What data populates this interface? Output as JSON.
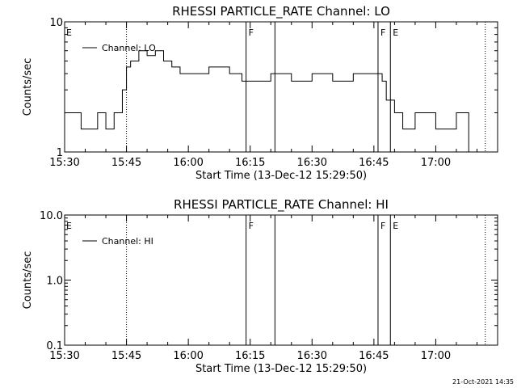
{
  "timestamp": "21-Oct-2021 14:35",
  "chart_data": [
    {
      "type": "line",
      "title": "RHESSI PARTICLE_RATE Channel: LO",
      "xlabel": "Start Time (13-Dec-12 15:29:50)",
      "ylabel": "Counts/sec",
      "yscale": "log",
      "xlim": [
        "15:30",
        "17:15"
      ],
      "ylim": [
        1,
        10
      ],
      "xticks": [
        "15:30",
        "15:45",
        "16:00",
        "16:15",
        "16:30",
        "16:45",
        "17:00"
      ],
      "yticks": [
        "1",
        "10"
      ],
      "legend": {
        "entries": [
          "Channel: LO"
        ],
        "placement": "top-left"
      },
      "grid": false,
      "series": [
        {
          "name": "Channel: LO",
          "x": [
            "15:30",
            "15:34",
            "15:38",
            "15:40",
            "15:42",
            "15:44",
            "15:45",
            "15:46",
            "15:48",
            "15:50",
            "15:52",
            "15:54",
            "15:56",
            "15:58",
            "16:00",
            "16:05",
            "16:10",
            "16:13",
            "16:15",
            "16:20",
            "16:25",
            "16:30",
            "16:35",
            "16:40",
            "16:45",
            "16:47",
            "16:48",
            "16:50",
            "16:52",
            "16:55",
            "17:00",
            "17:05",
            "17:08"
          ],
          "y": [
            2,
            1.5,
            2,
            1.5,
            2,
            3,
            4.5,
            5,
            6,
            5.5,
            6,
            5,
            4.5,
            4,
            4,
            4.5,
            4,
            3.5,
            3.5,
            4,
            3.5,
            4,
            3.5,
            4,
            4,
            3.5,
            2.5,
            2,
            1.5,
            2,
            1.5,
            2,
            1
          ]
        }
      ],
      "vlines": [
        {
          "x": "15:45",
          "style": "dotted",
          "label": ""
        },
        {
          "x": "16:14",
          "style": "solid",
          "label": "F"
        },
        {
          "x": "16:21",
          "style": "solid",
          "label": ""
        },
        {
          "x": "16:46",
          "style": "solid",
          "label": "F"
        },
        {
          "x": "16:49",
          "style": "solid",
          "label": "E"
        },
        {
          "x": "17:12",
          "style": "dotted",
          "label": ""
        }
      ],
      "annotations": [
        {
          "text": "E",
          "x": "15:30"
        }
      ]
    },
    {
      "type": "line",
      "title": "RHESSI PARTICLE_RATE Channel: HI",
      "xlabel": "Start Time (13-Dec-12 15:29:50)",
      "ylabel": "Counts/sec",
      "yscale": "log",
      "xlim": [
        "15:30",
        "17:15"
      ],
      "ylim": [
        0.1,
        10.0
      ],
      "xticks": [
        "15:30",
        "15:45",
        "16:00",
        "16:15",
        "16:30",
        "16:45",
        "17:00"
      ],
      "yticks": [
        "0.1",
        "1.0",
        "10.0"
      ],
      "legend": {
        "entries": [
          "Channel: HI"
        ],
        "placement": "top-left"
      },
      "grid": false,
      "series": [
        {
          "name": "Channel: HI",
          "x": [],
          "y": []
        }
      ],
      "vlines": [
        {
          "x": "15:45",
          "style": "dotted",
          "label": ""
        },
        {
          "x": "16:14",
          "style": "solid",
          "label": "F"
        },
        {
          "x": "16:21",
          "style": "solid",
          "label": ""
        },
        {
          "x": "16:46",
          "style": "solid",
          "label": "F"
        },
        {
          "x": "16:49",
          "style": "solid",
          "label": "E"
        },
        {
          "x": "17:12",
          "style": "dotted",
          "label": ""
        }
      ],
      "annotations": [
        {
          "text": "E",
          "x": "15:30"
        }
      ]
    }
  ]
}
